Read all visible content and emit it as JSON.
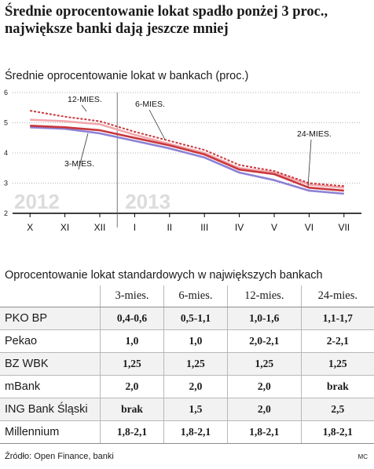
{
  "title": "Średnie oprocentowanie lokat spadło ponżej 3 proc., największe banki dają jeszcze mniej",
  "subtitle": "Średnie oprocentowanie lokat w bankach (proc.)",
  "chart_data": {
    "type": "line",
    "ylabel": "",
    "xlabel": "",
    "ylim": [
      2,
      6
    ],
    "yticks": [
      2,
      3,
      4,
      5,
      6
    ],
    "grid": true,
    "categories": [
      "X",
      "XI",
      "XII",
      "I",
      "II",
      "III",
      "IV",
      "V",
      "VI",
      "VII"
    ],
    "year_labels": [
      "2012",
      "2013"
    ],
    "series": [
      {
        "name": "3-MIES.",
        "color": "#8c82d6",
        "values": [
          4.85,
          4.8,
          4.65,
          4.4,
          4.15,
          3.85,
          3.35,
          3.1,
          2.75,
          2.65
        ]
      },
      {
        "name": "6-MIES.",
        "color": "#c9373c",
        "values": [
          4.9,
          4.85,
          4.75,
          4.5,
          4.25,
          3.95,
          3.45,
          3.3,
          2.85,
          2.75
        ]
      },
      {
        "name": "12-MIES.",
        "color": "#f2a8ac",
        "values": [
          5.1,
          5.05,
          4.95,
          4.6,
          4.3,
          4.0,
          3.5,
          3.35,
          2.95,
          2.85
        ]
      },
      {
        "name": "24-MIES.",
        "color": "#c9373c",
        "dashed": true,
        "values": [
          5.4,
          5.2,
          5.05,
          4.7,
          4.4,
          4.1,
          3.6,
          3.4,
          3.0,
          2.9
        ]
      }
    ]
  },
  "table": {
    "title": "Oprocentowanie lokat standardowych w największych bankach",
    "columns": [
      "",
      "3-mies.",
      "6-mies.",
      "12-mies.",
      "24-mies."
    ],
    "rows": [
      [
        "PKO BP",
        "0,4-0,6",
        "0,5-1,1",
        "1,0-1,6",
        "1,1-1,7"
      ],
      [
        "Pekao",
        "1,0",
        "1,0",
        "2,0-2,1",
        "2-2,1"
      ],
      [
        "BZ WBK",
        "1,25",
        "1,25",
        "1,25",
        "1,25"
      ],
      [
        "mBank",
        "2,0",
        "2,0",
        "2,0",
        "brak"
      ],
      [
        "ING Bank Śląski",
        "brak",
        "1,5",
        "2,0",
        "2,5"
      ],
      [
        "Millennium",
        "1,8-2,1",
        "1,8-2,1",
        "1,8-2,1",
        "1,8-2,1"
      ]
    ]
  },
  "source": "Źródło: Open Finance, banki",
  "credit": "MC"
}
